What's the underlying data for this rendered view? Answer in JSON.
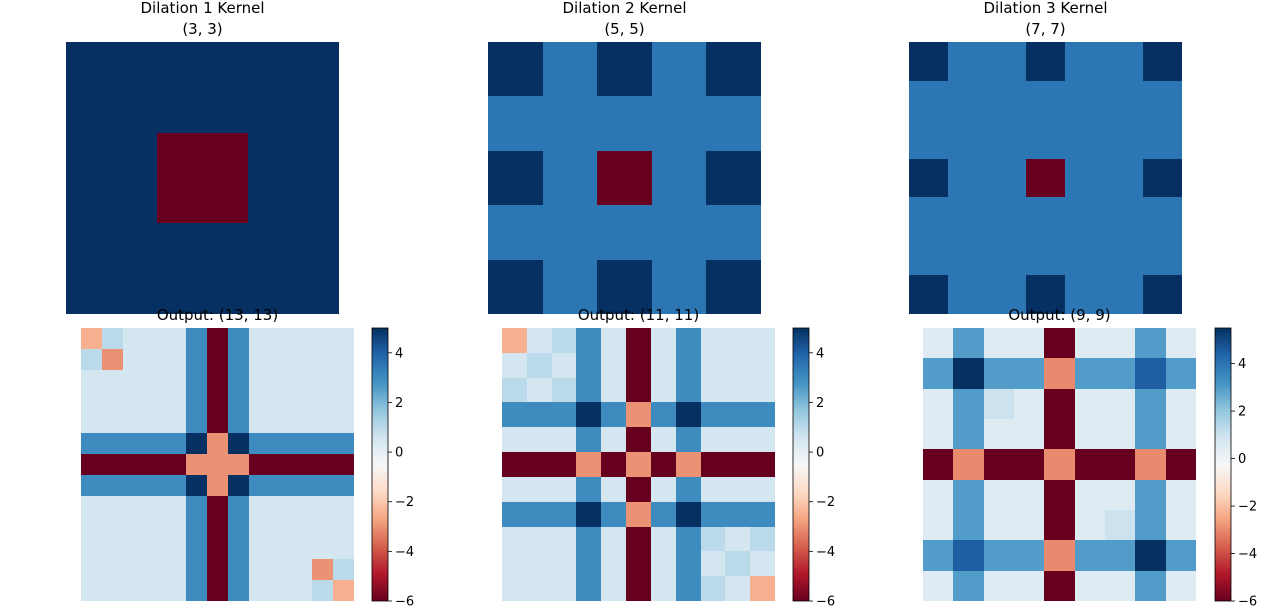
{
  "colorscale": {
    "name": "RdBu",
    "stops": [
      "#67001f",
      "#b2182b",
      "#d6604d",
      "#f4a582",
      "#fddbc7",
      "#f7f7f7",
      "#d1e5f0",
      "#92c5de",
      "#4393c3",
      "#2166ac",
      "#053061"
    ]
  },
  "chart_data": [
    {
      "type": "heatmap",
      "title_line1": "Dilation 1 Kernel",
      "title_line2": "(3, 3)",
      "vmin": -6,
      "vmax": 5,
      "colorbar": false,
      "matrix": [
        [
          5,
          5,
          5
        ],
        [
          5,
          -6,
          5
        ],
        [
          5,
          5,
          5
        ]
      ]
    },
    {
      "type": "heatmap",
      "title_line1": "Dilation 2 Kernel",
      "title_line2": "(5, 5)",
      "vmin": -6,
      "vmax": 5,
      "colorbar": false,
      "matrix": [
        [
          5,
          3.5,
          5,
          3.5,
          5
        ],
        [
          3.5,
          3.5,
          3.5,
          3.5,
          3.5
        ],
        [
          5,
          3.5,
          -6,
          3.5,
          5
        ],
        [
          3.5,
          3.5,
          3.5,
          3.5,
          3.5
        ],
        [
          5,
          3.5,
          5,
          3.5,
          5
        ]
      ]
    },
    {
      "type": "heatmap",
      "title_line1": "Dilation 3 Kernel",
      "title_line2": "(7, 7)",
      "vmin": -6,
      "vmax": 5,
      "colorbar": false,
      "matrix": [
        [
          5,
          3.5,
          3.5,
          5,
          3.5,
          3.5,
          5
        ],
        [
          3.5,
          3.5,
          3.5,
          3.5,
          3.5,
          3.5,
          3.5
        ],
        [
          3.5,
          3.5,
          3.5,
          3.5,
          3.5,
          3.5,
          3.5
        ],
        [
          5,
          3.5,
          3.5,
          -6,
          3.5,
          3.5,
          5
        ],
        [
          3.5,
          3.5,
          3.5,
          3.5,
          3.5,
          3.5,
          3.5
        ],
        [
          3.5,
          3.5,
          3.5,
          3.5,
          3.5,
          3.5,
          3.5
        ],
        [
          5,
          3.5,
          3.5,
          5,
          3.5,
          3.5,
          5
        ]
      ]
    },
    {
      "type": "heatmap",
      "title_line1": "Output: (13, 13)",
      "title_line2": "",
      "vmin": -6,
      "vmax": 5,
      "colorbar": true,
      "colorbar_ticks": [
        4,
        2,
        0,
        -2,
        -4,
        -6
      ],
      "colorbar_tick_labels": [
        "4",
        "2",
        "0",
        "−2",
        "−4",
        "−6"
      ],
      "matrix": [
        [
          -2.5,
          1,
          0.5,
          0.5,
          0.5,
          3,
          -6,
          3,
          0.5,
          0.5,
          0.5,
          0.5,
          0.5
        ],
        [
          1,
          -3,
          0.5,
          0.5,
          0.5,
          3,
          -6,
          3,
          0.5,
          0.5,
          0.5,
          0.5,
          0.5
        ],
        [
          0.5,
          0.5,
          0.5,
          0.5,
          0.5,
          3,
          -6,
          3,
          0.5,
          0.5,
          0.5,
          0.5,
          0.5
        ],
        [
          0.5,
          0.5,
          0.5,
          0.5,
          0.5,
          3,
          -6,
          3,
          0.5,
          0.5,
          0.5,
          0.5,
          0.5
        ],
        [
          0.5,
          0.5,
          0.5,
          0.5,
          0.5,
          3,
          -6,
          3,
          0.5,
          0.5,
          0.5,
          0.5,
          0.5
        ],
        [
          3,
          3,
          3,
          3,
          3,
          5,
          -3,
          5,
          3,
          3,
          3,
          3,
          3
        ],
        [
          -6,
          -6,
          -6,
          -6,
          -6,
          -3,
          -3,
          -3,
          -6,
          -6,
          -6,
          -6,
          -6
        ],
        [
          3,
          3,
          3,
          3,
          3,
          5,
          -3,
          5,
          3,
          3,
          3,
          3,
          3
        ],
        [
          0.5,
          0.5,
          0.5,
          0.5,
          0.5,
          3,
          -6,
          3,
          0.5,
          0.5,
          0.5,
          0.5,
          0.5
        ],
        [
          0.5,
          0.5,
          0.5,
          0.5,
          0.5,
          3,
          -6,
          3,
          0.5,
          0.5,
          0.5,
          0.5,
          0.5
        ],
        [
          0.5,
          0.5,
          0.5,
          0.5,
          0.5,
          3,
          -6,
          3,
          0.5,
          0.5,
          0.5,
          0.5,
          0.5
        ],
        [
          0.5,
          0.5,
          0.5,
          0.5,
          0.5,
          3,
          -6,
          3,
          0.5,
          0.5,
          0.5,
          -3,
          1
        ],
        [
          0.5,
          0.5,
          0.5,
          0.5,
          0.5,
          3,
          -6,
          3,
          0.5,
          0.5,
          0.5,
          1,
          -2.5
        ]
      ]
    },
    {
      "type": "heatmap",
      "title_line1": "Output: (11, 11)",
      "title_line2": "",
      "vmin": -6,
      "vmax": 5,
      "colorbar": true,
      "colorbar_ticks": [
        4,
        2,
        0,
        -2,
        -4,
        -6
      ],
      "colorbar_tick_labels": [
        "4",
        "2",
        "0",
        "−2",
        "−4",
        "−6"
      ],
      "matrix": [
        [
          -2.5,
          0.5,
          1,
          3,
          0.5,
          -6,
          0.5,
          3,
          0.5,
          0.5,
          0.5
        ],
        [
          0.5,
          1,
          0.5,
          3,
          0.5,
          -6,
          0.5,
          3,
          0.5,
          0.5,
          0.5
        ],
        [
          1,
          0.5,
          1,
          3,
          0.5,
          -6,
          0.5,
          3,
          0.5,
          0.5,
          0.5
        ],
        [
          3,
          3,
          3,
          5,
          3,
          -3,
          3,
          5,
          3,
          3,
          3
        ],
        [
          0.5,
          0.5,
          0.5,
          3,
          0.5,
          -6,
          0.5,
          3,
          0.5,
          0.5,
          0.5
        ],
        [
          -6,
          -6,
          -6,
          -3,
          -6,
          -3,
          -6,
          -3,
          -6,
          -6,
          -6
        ],
        [
          0.5,
          0.5,
          0.5,
          3,
          0.5,
          -6,
          0.5,
          3,
          0.5,
          0.5,
          0.5
        ],
        [
          3,
          3,
          3,
          5,
          3,
          -3,
          3,
          5,
          3,
          3,
          3
        ],
        [
          0.5,
          0.5,
          0.5,
          3,
          0.5,
          -6,
          0.5,
          3,
          1,
          0.5,
          1
        ],
        [
          0.5,
          0.5,
          0.5,
          3,
          0.5,
          -6,
          0.5,
          3,
          0.5,
          1,
          0.5
        ],
        [
          0.5,
          0.5,
          0.5,
          3,
          0.5,
          -6,
          0.5,
          3,
          1,
          0.5,
          -2.5
        ]
      ]
    },
    {
      "type": "heatmap",
      "title_line1": "Output: (9, 9)",
      "title_line2": "",
      "vmin": -6,
      "vmax": 5.5,
      "colorbar": true,
      "colorbar_ticks": [
        4,
        2,
        0,
        -2,
        -4,
        -6
      ],
      "colorbar_tick_labels": [
        "4",
        "2",
        "0",
        "−2",
        "−4",
        "−6"
      ],
      "matrix": [
        [
          0.5,
          3,
          0.5,
          0.5,
          -6,
          0.5,
          0.5,
          3,
          0.5
        ],
        [
          3,
          5.5,
          3,
          3,
          -3,
          3,
          3,
          4.5,
          3
        ],
        [
          0.5,
          3,
          1,
          0.5,
          -6,
          0.5,
          0.5,
          3,
          0.5
        ],
        [
          0.5,
          3,
          0.5,
          0.5,
          -6,
          0.5,
          0.5,
          3,
          0.5
        ],
        [
          -6,
          -3,
          -6,
          -6,
          -3,
          -6,
          -6,
          -3,
          -6
        ],
        [
          0.5,
          3,
          0.5,
          0.5,
          -6,
          0.5,
          0.5,
          3,
          0.5
        ],
        [
          0.5,
          3,
          0.5,
          0.5,
          -6,
          0.5,
          1,
          3,
          0.5
        ],
        [
          3,
          4.5,
          3,
          3,
          -3,
          3,
          3,
          5.5,
          3
        ],
        [
          0.5,
          3,
          0.5,
          0.5,
          -6,
          0.5,
          0.5,
          3,
          0.5
        ]
      ]
    }
  ]
}
